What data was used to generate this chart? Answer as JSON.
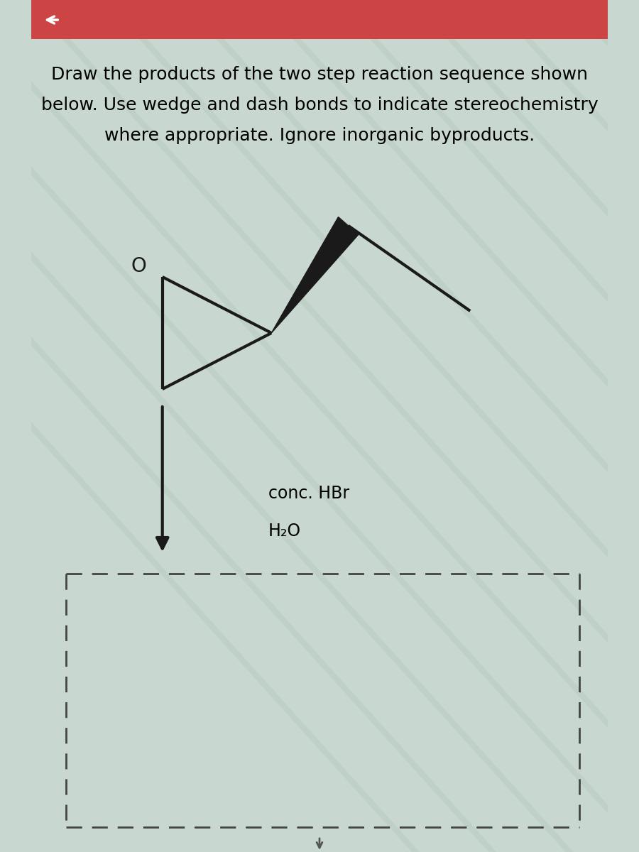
{
  "title_line1": "Draw the products of the two step reaction sequence shown",
  "title_line2": "below. Use wedge and dash bonds to indicate stereochemistry",
  "title_line3": "where appropriate. Ignore inorganic byproducts.",
  "reagent1": "conc. HBr",
  "reagent2": "H₂O",
  "bg_color": "#c8d8d0",
  "stripe_color": "#b8ccbf",
  "title_fontsize": 18,
  "reagent_fontsize": 17,
  "molecule_color": "#1a1a1a",
  "arrow_color": "#1a1a1a",
  "dashed_box_color": "#444444",
  "top_bar_color": "#cc4444"
}
